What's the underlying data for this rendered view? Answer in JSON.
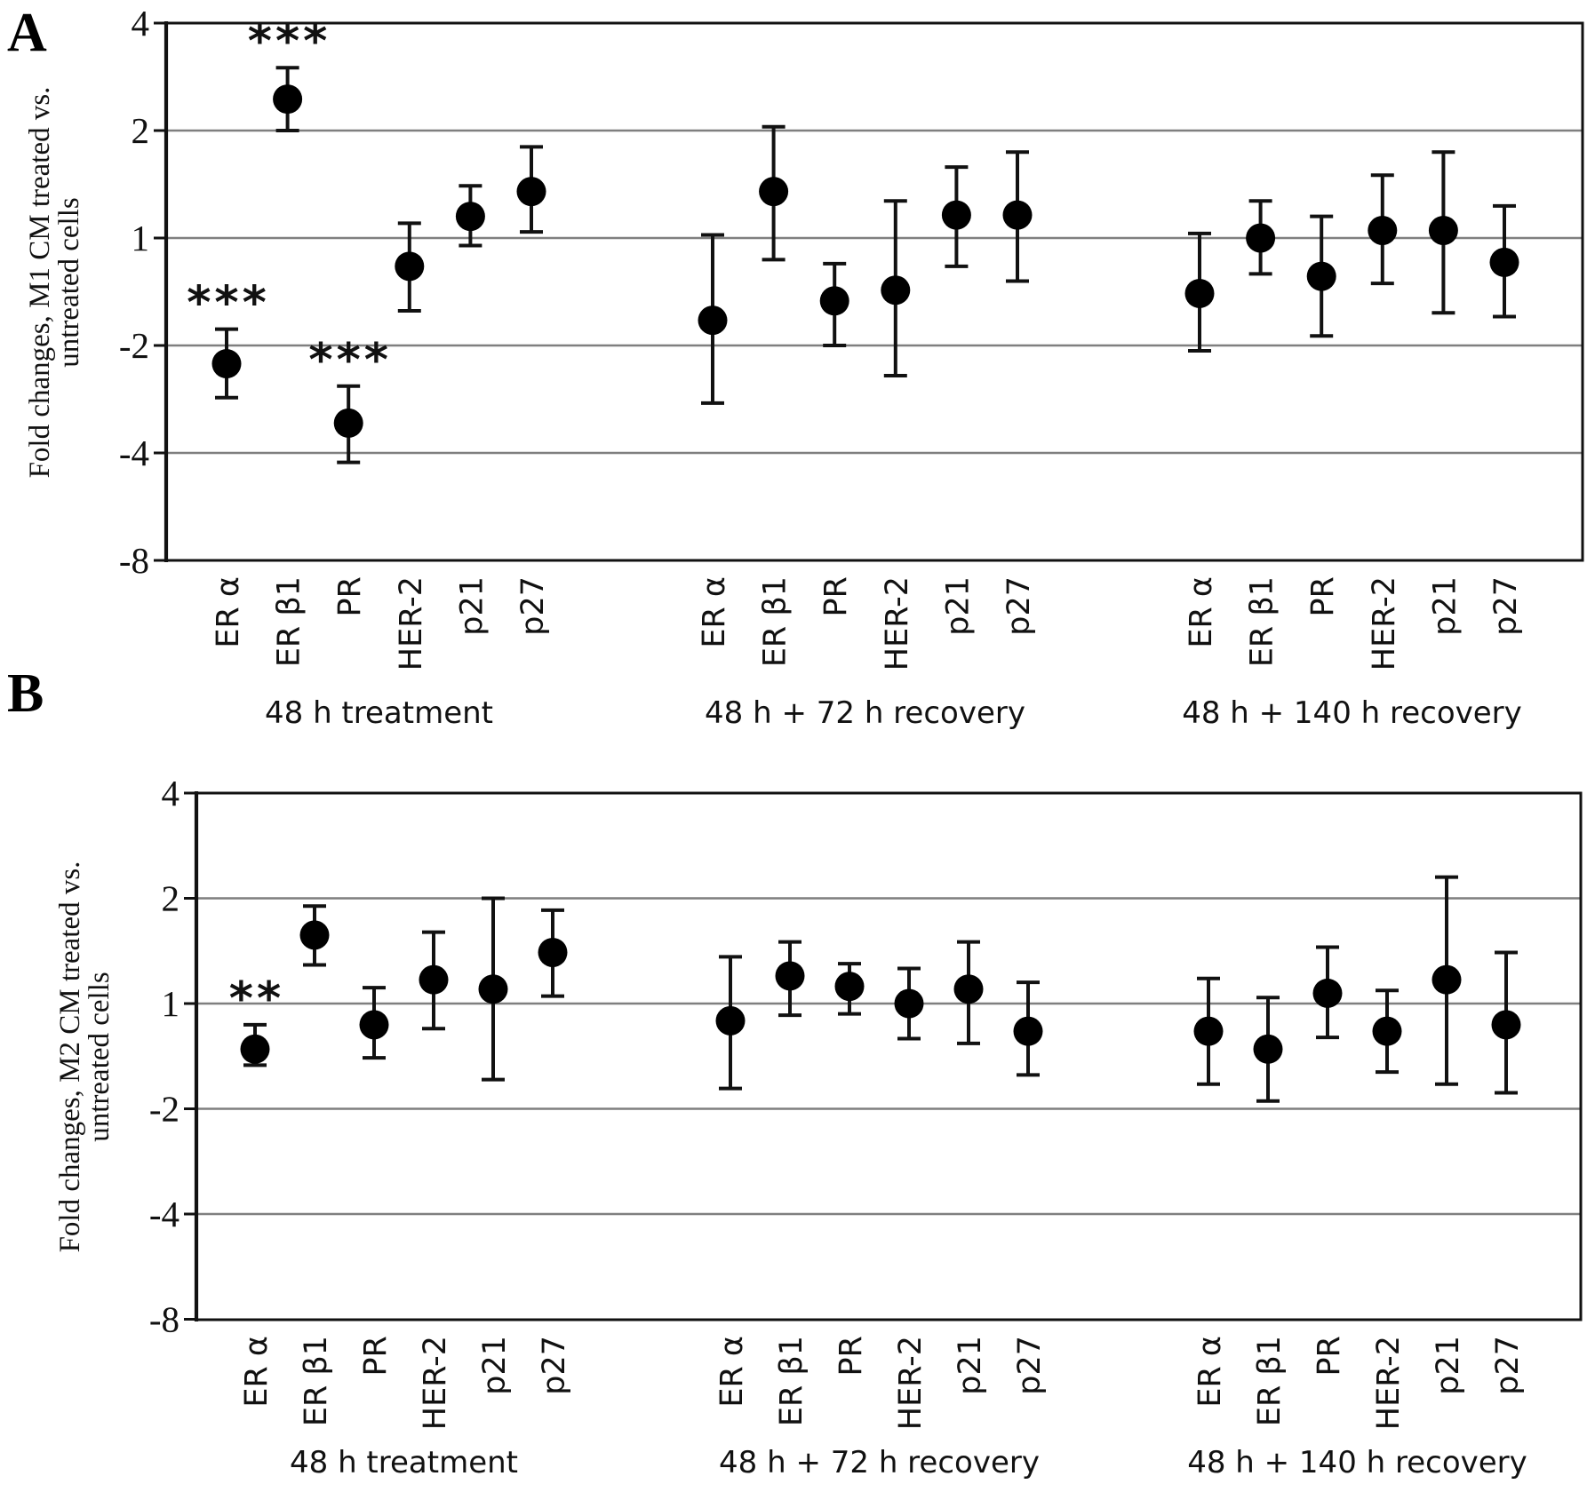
{
  "colors": {
    "marker": "#000000",
    "error_bar": "#111111",
    "gridline": "#7f7f7f",
    "axis": "#111111",
    "background": "#ffffff",
    "text": "#111111"
  },
  "chart_data": [
    {
      "panel_label": "A",
      "type": "scatter",
      "title": "",
      "xlabel": "",
      "ylabel": "Fold changes, M1 CM treated vs. untreated cells",
      "ylabel_lines": [
        "Fold changes, M1 CM treated vs.",
        "untreated cells"
      ],
      "y_scale": "symmetric log2 fold-change",
      "y_ticks": [
        4,
        2,
        1,
        -2,
        -4,
        -8
      ],
      "y_tick_labels": [
        "4",
        "2",
        "1",
        "-2",
        "-4",
        "-8"
      ],
      "ylim": [
        -8,
        4
      ],
      "grid": true,
      "legend": "none",
      "categories": [
        "ER α",
        "ER β1",
        "PR",
        "HER-2",
        "p21",
        "p27"
      ],
      "groups": [
        {
          "label": "48 h treatment",
          "points": [
            {
              "gene": "ER α",
              "value": -2.25,
              "err_hi": -1.8,
              "err_lo": -2.8,
              "sig": "***"
            },
            {
              "gene": "ER β1",
              "value": 2.45,
              "err_hi": 3.0,
              "err_lo": 2.0,
              "sig": "***"
            },
            {
              "gene": "PR",
              "value": -3.3,
              "err_hi": -2.6,
              "err_lo": -4.25,
              "sig": "***"
            },
            {
              "gene": "HER-2",
              "value": -1.2,
              "err_hi": 1.1,
              "err_lo": -1.6,
              "sig": ""
            },
            {
              "gene": "p21",
              "value": 1.15,
              "err_hi": 1.4,
              "err_lo": -1.05,
              "sig": ""
            },
            {
              "gene": "p27",
              "value": 1.35,
              "err_hi": 1.8,
              "err_lo": 1.04,
              "sig": ""
            }
          ]
        },
        {
          "label": "48 h + 72 h recovery",
          "points": [
            {
              "gene": "ER α",
              "value": -1.7,
              "err_hi": 1.02,
              "err_lo": -2.9,
              "sig": ""
            },
            {
              "gene": "ER β1",
              "value": 1.35,
              "err_hi": 2.05,
              "err_lo": -1.15,
              "sig": ""
            },
            {
              "gene": "PR",
              "value": -1.5,
              "err_hi": -1.18,
              "err_lo": -2.0,
              "sig": ""
            },
            {
              "gene": "HER-2",
              "value": -1.4,
              "err_hi": 1.27,
              "err_lo": -2.43,
              "sig": ""
            },
            {
              "gene": "p21",
              "value": 1.16,
              "err_hi": 1.58,
              "err_lo": -1.2,
              "sig": ""
            },
            {
              "gene": "p27",
              "value": 1.16,
              "err_hi": 1.74,
              "err_lo": -1.32,
              "sig": ""
            }
          ]
        },
        {
          "label": "48 h + 140 h recovery",
          "points": [
            {
              "gene": "ER α",
              "value": -1.43,
              "err_hi": 1.03,
              "err_lo": -2.07,
              "sig": ""
            },
            {
              "gene": "ER β1",
              "value": 1.0,
              "err_hi": 1.27,
              "err_lo": -1.26,
              "sig": ""
            },
            {
              "gene": "PR",
              "value": -1.28,
              "err_hi": 1.15,
              "err_lo": -1.88,
              "sig": ""
            },
            {
              "gene": "HER-2",
              "value": 1.05,
              "err_hi": 1.5,
              "err_lo": -1.34,
              "sig": ""
            },
            {
              "gene": "p21",
              "value": 1.05,
              "err_hi": 1.74,
              "err_lo": -1.62,
              "sig": ""
            },
            {
              "gene": "p27",
              "value": -1.17,
              "err_hi": 1.23,
              "err_lo": -1.66,
              "sig": ""
            }
          ]
        }
      ]
    },
    {
      "panel_label": "B",
      "type": "scatter",
      "title": "",
      "xlabel": "",
      "ylabel": "Fold changes, M2 CM treated vs. untreated cells",
      "ylabel_lines": [
        "Fold changes, M2 CM treated vs.",
        "untreated cells"
      ],
      "y_scale": "symmetric log2 fold-change",
      "y_ticks": [
        4,
        2,
        1,
        -2,
        -4,
        -8
      ],
      "y_tick_labels": [
        "4",
        "2",
        "1",
        "-2",
        "-4",
        "-8"
      ],
      "ylim": [
        -8,
        4
      ],
      "grid": true,
      "legend": "none",
      "categories": [
        "ER α",
        "ER β1",
        "PR",
        "HER-2",
        "p21",
        "p27"
      ],
      "groups": [
        {
          "label": "48 h treatment",
          "points": [
            {
              "gene": "ER α",
              "value": -1.35,
              "err_hi": -1.15,
              "err_lo": -1.5,
              "sig": "**"
            },
            {
              "gene": "ER β1",
              "value": 1.57,
              "err_hi": 1.9,
              "err_lo": 1.29,
              "sig": ""
            },
            {
              "gene": "PR",
              "value": -1.15,
              "err_hi": 1.11,
              "err_lo": -1.43,
              "sig": ""
            },
            {
              "gene": "HER-2",
              "value": 1.17,
              "err_hi": 1.6,
              "err_lo": -1.18,
              "sig": ""
            },
            {
              "gene": "p21",
              "value": 1.1,
              "err_hi": 2.0,
              "err_lo": -1.65,
              "sig": ""
            },
            {
              "gene": "p27",
              "value": 1.4,
              "err_hi": 1.85,
              "err_lo": 1.05,
              "sig": ""
            }
          ]
        },
        {
          "label": "48 h + 72 h recovery",
          "points": [
            {
              "gene": "ER α",
              "value": -1.12,
              "err_hi": 1.36,
              "err_lo": -1.75,
              "sig": ""
            },
            {
              "gene": "ER β1",
              "value": 1.2,
              "err_hi": 1.5,
              "err_lo": -1.08,
              "sig": ""
            },
            {
              "gene": "PR",
              "value": 1.12,
              "err_hi": 1.3,
              "err_lo": -1.07,
              "sig": ""
            },
            {
              "gene": "HER-2",
              "value": 1.0,
              "err_hi": 1.26,
              "err_lo": -1.26,
              "sig": ""
            },
            {
              "gene": "p21",
              "value": 1.1,
              "err_hi": 1.5,
              "err_lo": -1.3,
              "sig": ""
            },
            {
              "gene": "p27",
              "value": -1.2,
              "err_hi": 1.15,
              "err_lo": -1.6,
              "sig": ""
            }
          ]
        },
        {
          "label": "48 h + 140 h recovery",
          "points": [
            {
              "gene": "ER α",
              "value": -1.2,
              "err_hi": 1.18,
              "err_lo": -1.7,
              "sig": ""
            },
            {
              "gene": "ER β1",
              "value": -1.35,
              "err_hi": 1.04,
              "err_lo": -1.9,
              "sig": ""
            },
            {
              "gene": "PR",
              "value": 1.07,
              "err_hi": 1.45,
              "err_lo": -1.25,
              "sig": ""
            },
            {
              "gene": "HER-2",
              "value": -1.2,
              "err_hi": 1.09,
              "err_lo": -1.57,
              "sig": ""
            },
            {
              "gene": "p21",
              "value": 1.17,
              "err_hi": 2.3,
              "err_lo": -1.7,
              "sig": ""
            },
            {
              "gene": "p27",
              "value": -1.15,
              "err_hi": 1.4,
              "err_lo": -1.8,
              "sig": ""
            }
          ]
        }
      ]
    }
  ]
}
